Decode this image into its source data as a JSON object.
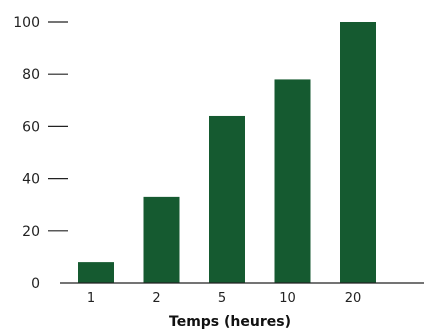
{
  "chart_data": {
    "type": "bar",
    "categories": [
      "1",
      "2",
      "5",
      "10",
      "20"
    ],
    "values": [
      8,
      33,
      64,
      78,
      100
    ],
    "title": "",
    "xlabel": "Temps (heures)",
    "ylabel": "",
    "ylim": [
      0,
      100
    ],
    "yticks": [
      0,
      20,
      40,
      60,
      80,
      100
    ],
    "ytick_labels": [
      "0",
      "20",
      "40",
      "60",
      "80",
      "100"
    ],
    "grid": false,
    "legend": "none",
    "colors": {
      "bar": "#155a30",
      "axis": "#222222"
    }
  }
}
